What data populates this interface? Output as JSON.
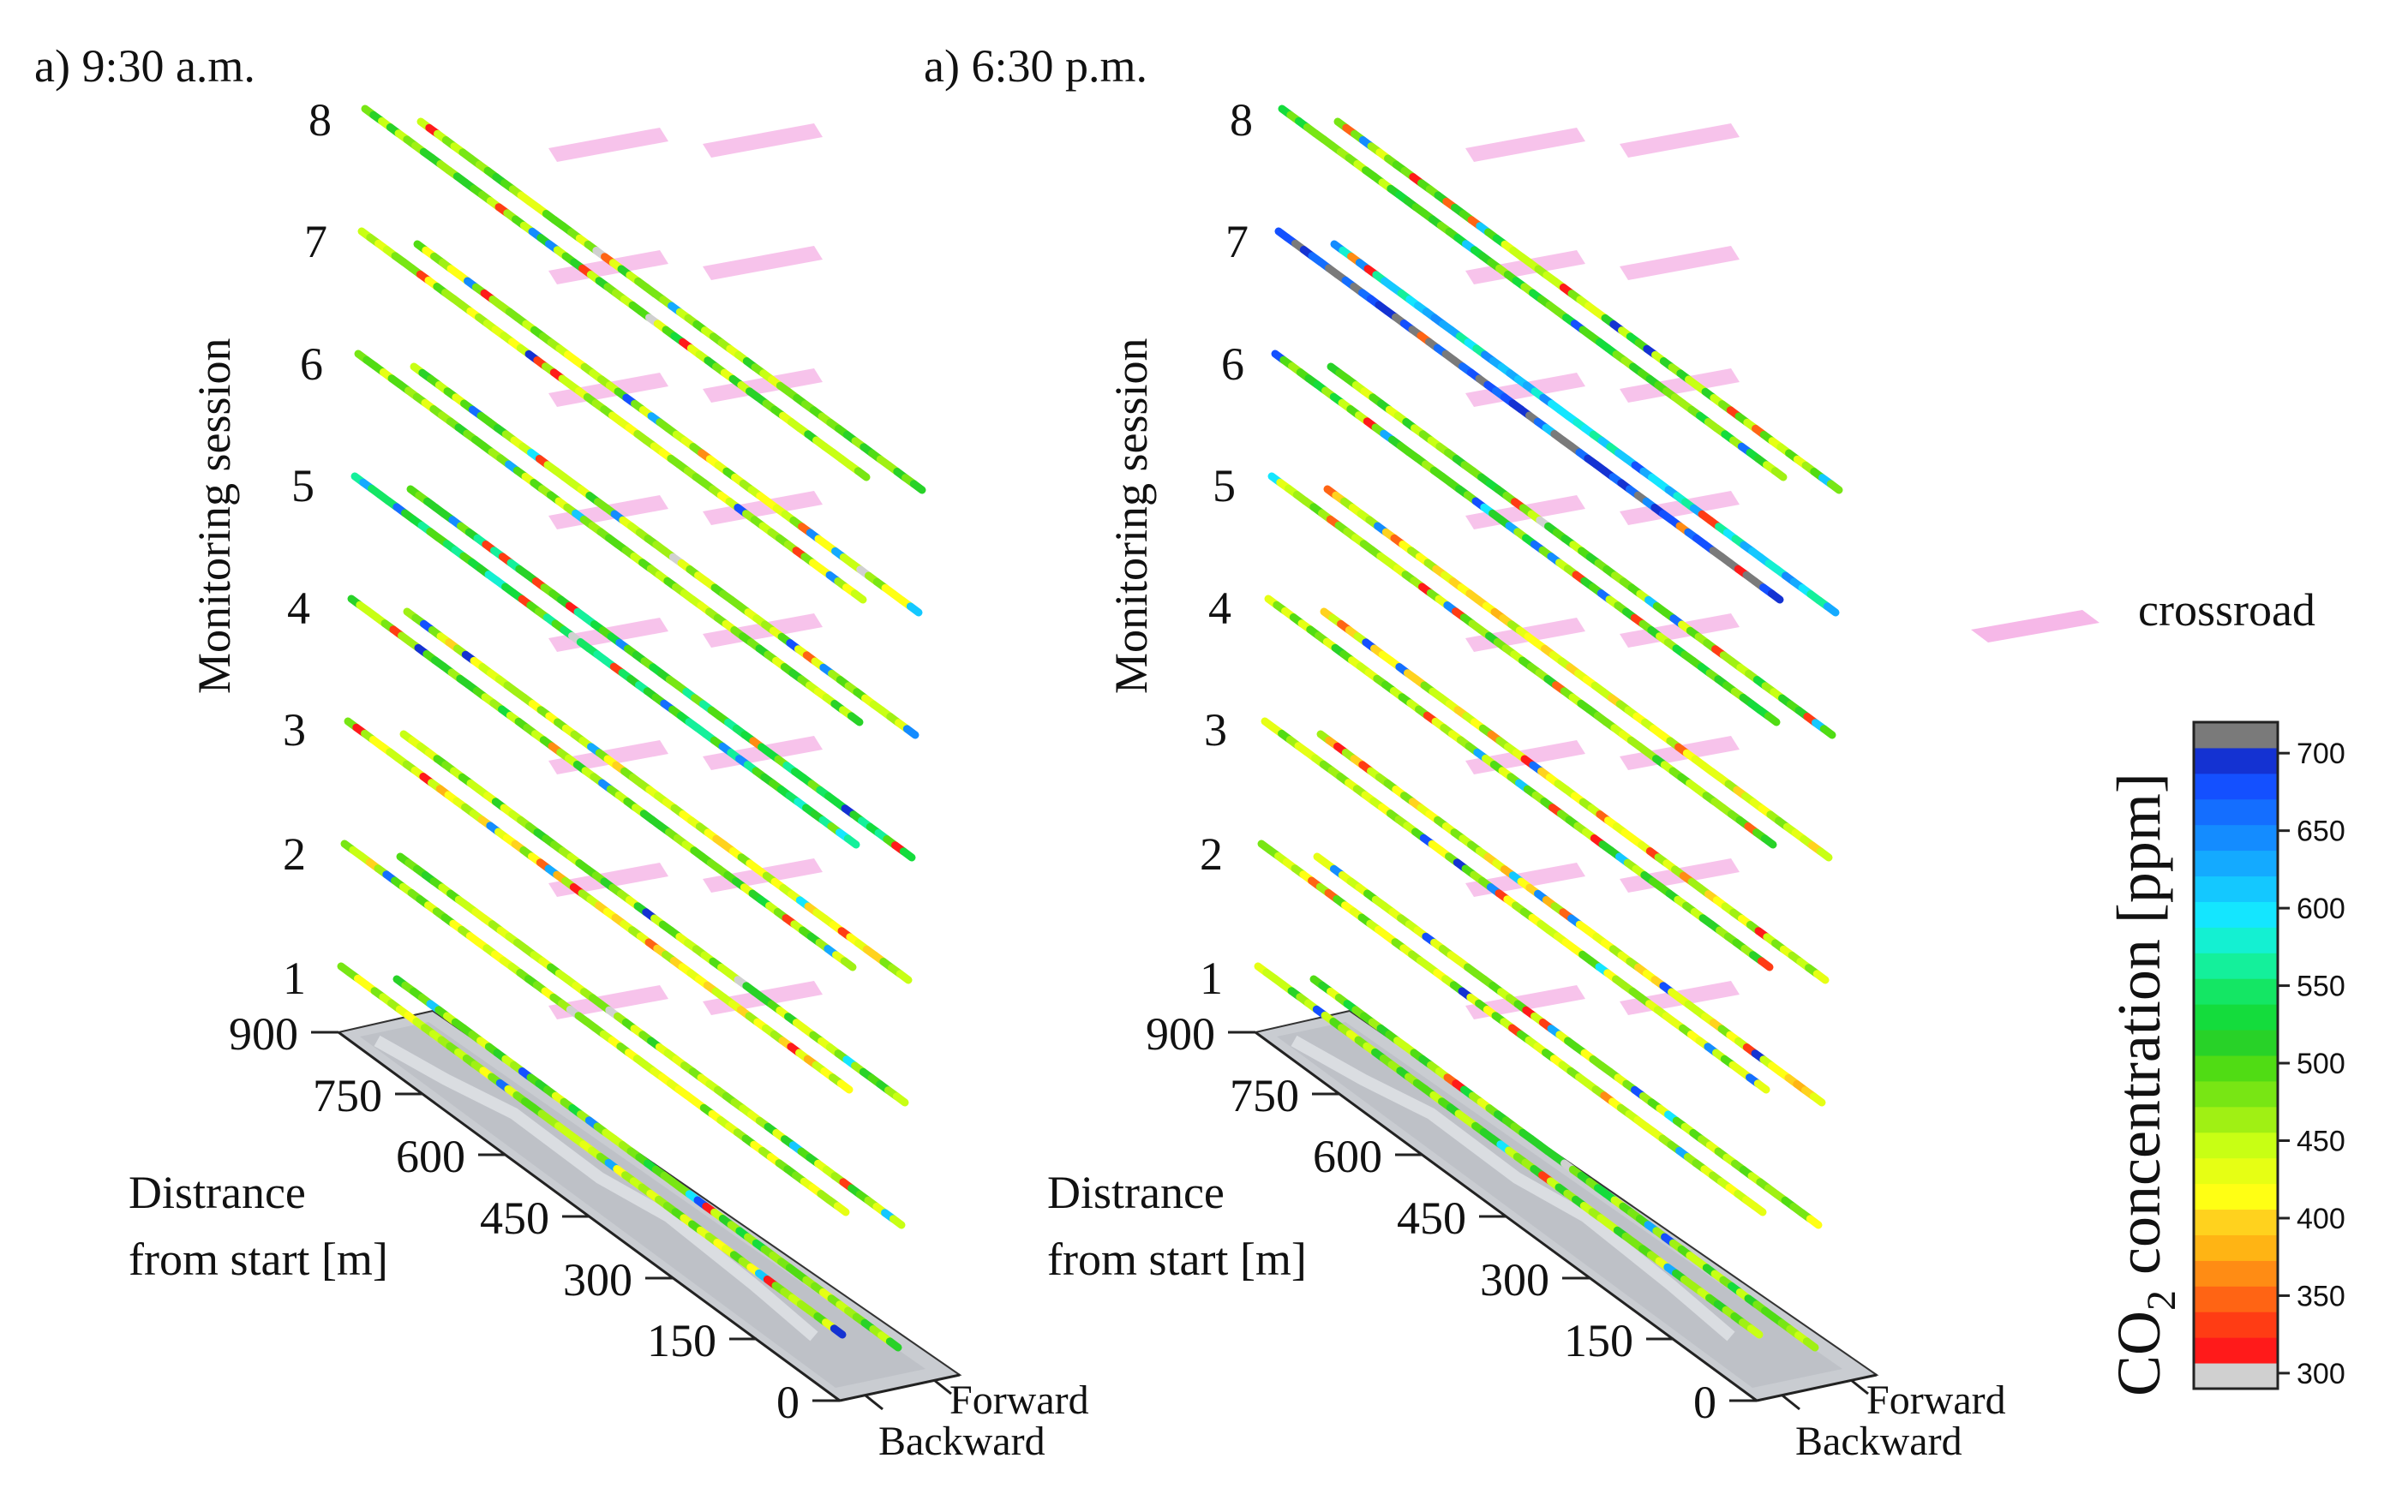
{
  "chart_data": {
    "type": "3d-line-strips",
    "panels": [
      {
        "title": "a) 9:30 a.m.",
        "ylabel": "Monitoring session",
        "sessions": [
          "1",
          "2",
          "3",
          "4",
          "5",
          "6",
          "7",
          "8"
        ],
        "distance_label_line1": "Distrance",
        "distance_label_line2": "from start [m]",
        "distance_ticks": [
          "0",
          "150",
          "300",
          "450",
          "600",
          "750",
          "900"
        ],
        "direction_labels": [
          "Forward",
          "Backward"
        ],
        "baseline_forward_ppm": 470,
        "baseline_backward_ppm": 455,
        "session_bias_ppm": [
          {
            "session": 1,
            "forward": 480,
            "backward": 455
          },
          {
            "session": 2,
            "forward": 470,
            "backward": 450
          },
          {
            "session": 3,
            "forward": 470,
            "backward": 430
          },
          {
            "session": 4,
            "forward": 440,
            "backward": 480
          },
          {
            "session": 5,
            "forward": 520,
            "backward": 530
          },
          {
            "session": 6,
            "forward": 470,
            "backward": 470
          },
          {
            "session": 7,
            "forward": 450,
            "backward": 450
          },
          {
            "session": 8,
            "forward": 470,
            "backward": 480
          }
        ]
      },
      {
        "title": "a) 6:30 p.m.",
        "ylabel": "Monitoring session",
        "sessions": [
          "1",
          "2",
          "3",
          "4",
          "5",
          "6",
          "7",
          "8"
        ],
        "distance_label_line1": "Distrance",
        "distance_label_line2": "from start [m]",
        "distance_ticks": [
          "0",
          "150",
          "300",
          "450",
          "600",
          "750",
          "900"
        ],
        "direction_labels": [
          "Forward",
          "Backward"
        ],
        "baseline_forward_ppm": 470,
        "baseline_backward_ppm": 450,
        "session_bias_ppm": [
          {
            "session": 1,
            "forward": 480,
            "backward": 475
          },
          {
            "session": 2,
            "forward": 460,
            "backward": 455
          },
          {
            "session": 3,
            "forward": 430,
            "backward": 450
          },
          {
            "session": 4,
            "forward": 440,
            "backward": 470
          },
          {
            "session": 5,
            "forward": 430,
            "backward": 470
          },
          {
            "session": 6,
            "forward": 480,
            "backward": 490
          },
          {
            "session": 7,
            "forward": 600,
            "backward": 700
          },
          {
            "session": 8,
            "forward": 480,
            "backward": 490
          }
        ]
      }
    ],
    "legend": {
      "crossroad_label": "crossroad",
      "crossroad_color": "#f6b8e8"
    },
    "colorbar": {
      "title_prefix": "CO",
      "title_sub": "2",
      "title_suffix": " concentration [ppm]",
      "range": [
        290,
        720
      ],
      "ticks": [
        "300",
        "350",
        "400",
        "450",
        "500",
        "550",
        "600",
        "650",
        "700"
      ],
      "tick_values": [
        300,
        350,
        400,
        450,
        500,
        550,
        600,
        650,
        700
      ],
      "colors": [
        "#d0d0d0",
        "#ff1a1a",
        "#ff3c14",
        "#ff6414",
        "#ff8c14",
        "#ffb414",
        "#ffd21e",
        "#ffff14",
        "#e6ff14",
        "#c8ff14",
        "#a0f014",
        "#78e614",
        "#50dc14",
        "#28d228",
        "#14dc3c",
        "#14e664",
        "#14f09b",
        "#14f0d2",
        "#14e6ff",
        "#14c8ff",
        "#14aaff",
        "#148cff",
        "#146eff",
        "#1450ff",
        "#1432d2",
        "#7a7a7a"
      ]
    }
  }
}
